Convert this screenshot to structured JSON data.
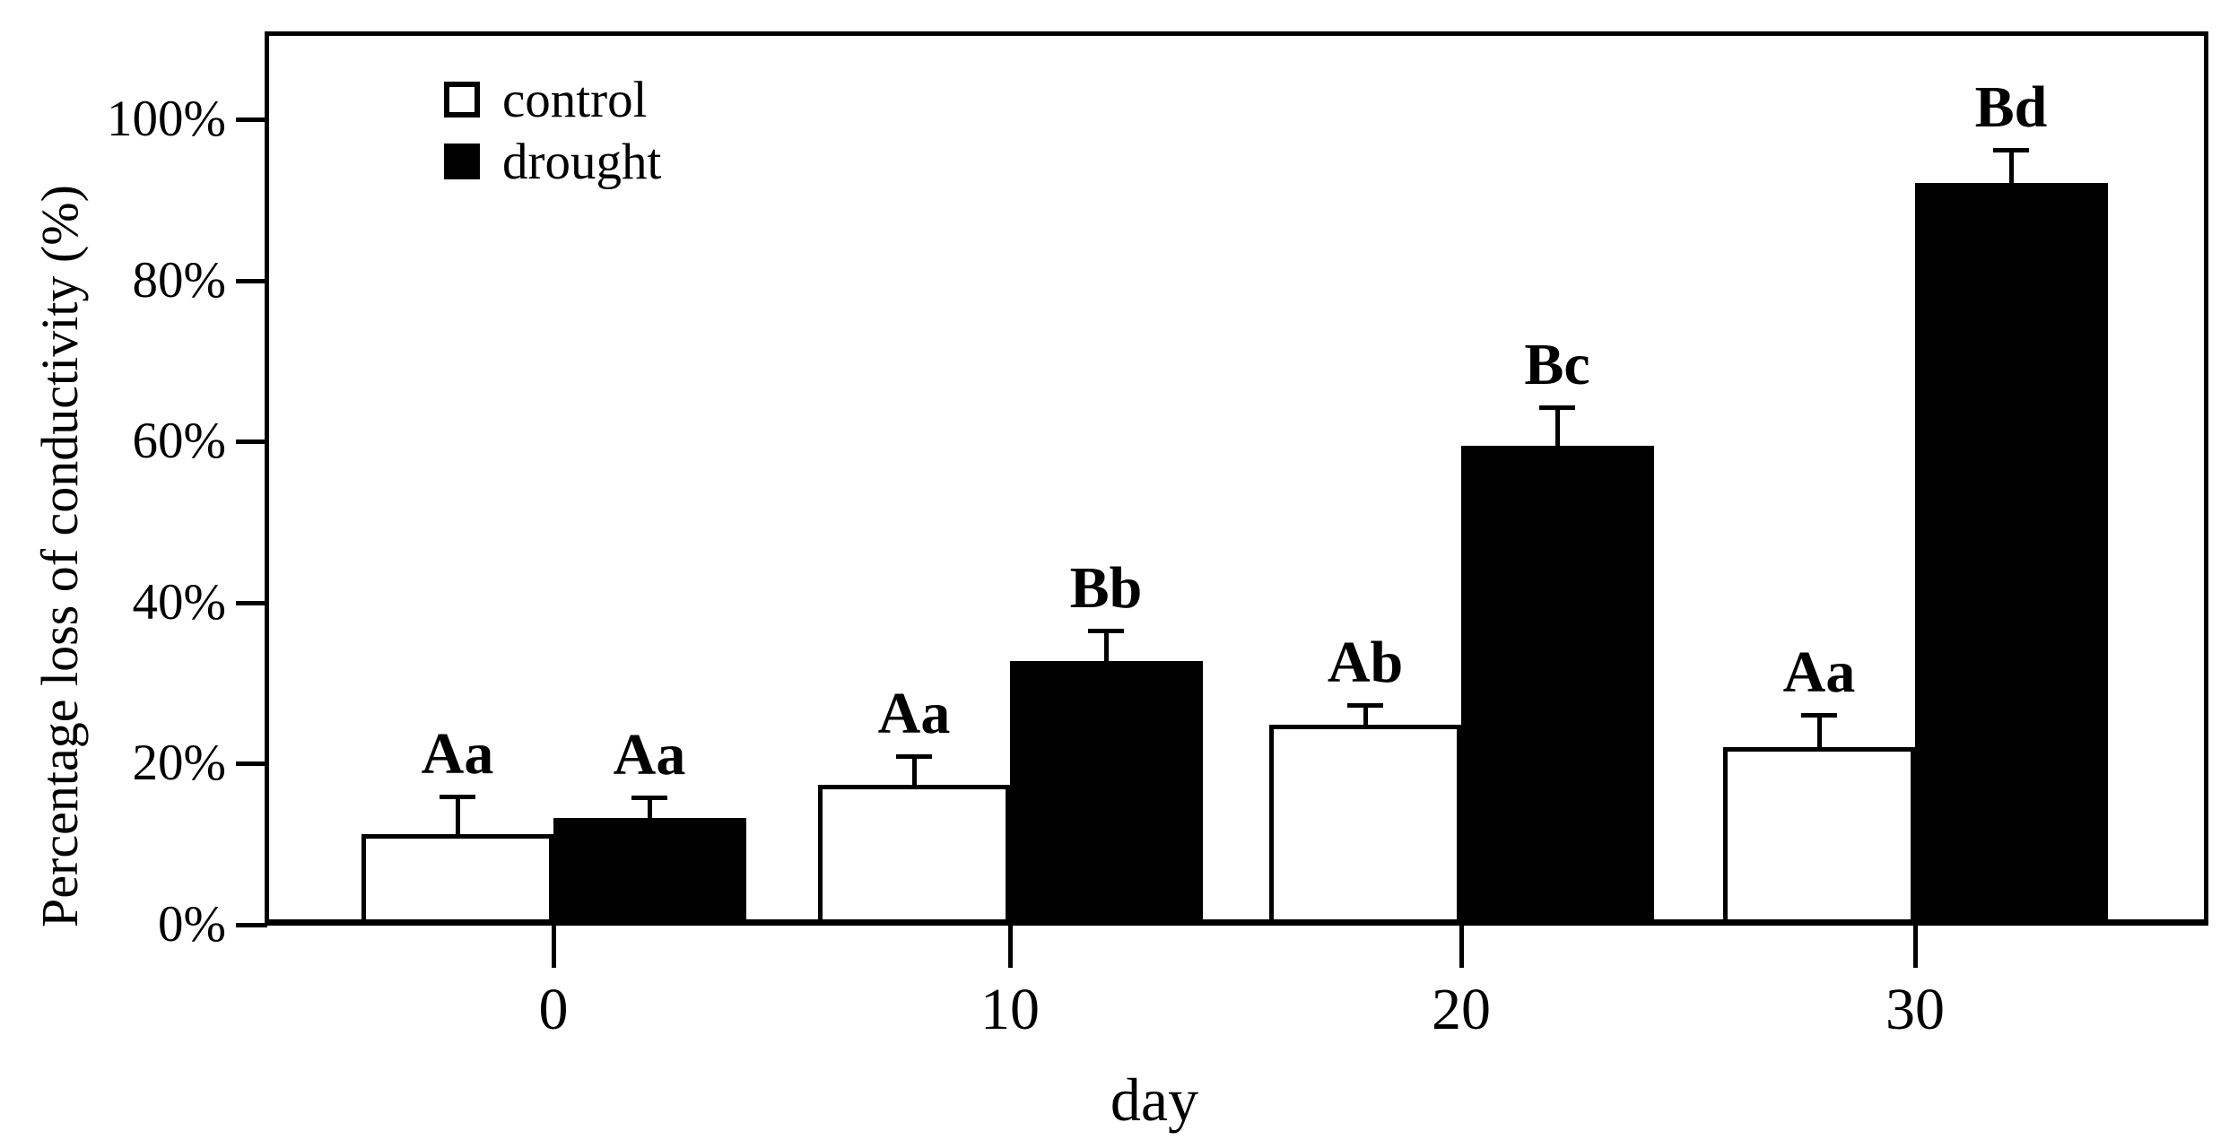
{
  "chart_data": {
    "type": "bar",
    "title": "",
    "xlabel": "day",
    "ylabel": "Percentage loss of conductivity (%)",
    "categories": [
      "0",
      "10",
      "20",
      "30"
    ],
    "y_axis": {
      "min": 0,
      "max": 111,
      "tick_values": [
        0,
        20,
        40,
        60,
        80,
        100
      ],
      "tick_labels": [
        "0%",
        "20%",
        "40%",
        "60%",
        "80%",
        "100%"
      ]
    },
    "grid": false,
    "legend_position": "top-left-inside",
    "bar_colors": {
      "control_fill": "#ffffff",
      "drought_fill": "#000000",
      "stroke": "#000000"
    },
    "series": [
      {
        "name": "control",
        "fill": "#ffffff",
        "values": [
          11.2,
          17.4,
          24.8,
          22.0
        ],
        "errors_plus": [
          4.9,
          3.8,
          2.7,
          4.3
        ],
        "sig_labels": [
          "Aa",
          "Aa",
          "Ab",
          "Aa"
        ]
      },
      {
        "name": "drought",
        "fill": "#000000",
        "values": [
          13.3,
          32.7,
          59.5,
          92.1
        ],
        "errors_plus": [
          2.7,
          4.0,
          5.0,
          4.3
        ],
        "sig_labels": [
          "Aa",
          "Bb",
          "Bc",
          "Bd"
        ]
      }
    ]
  }
}
